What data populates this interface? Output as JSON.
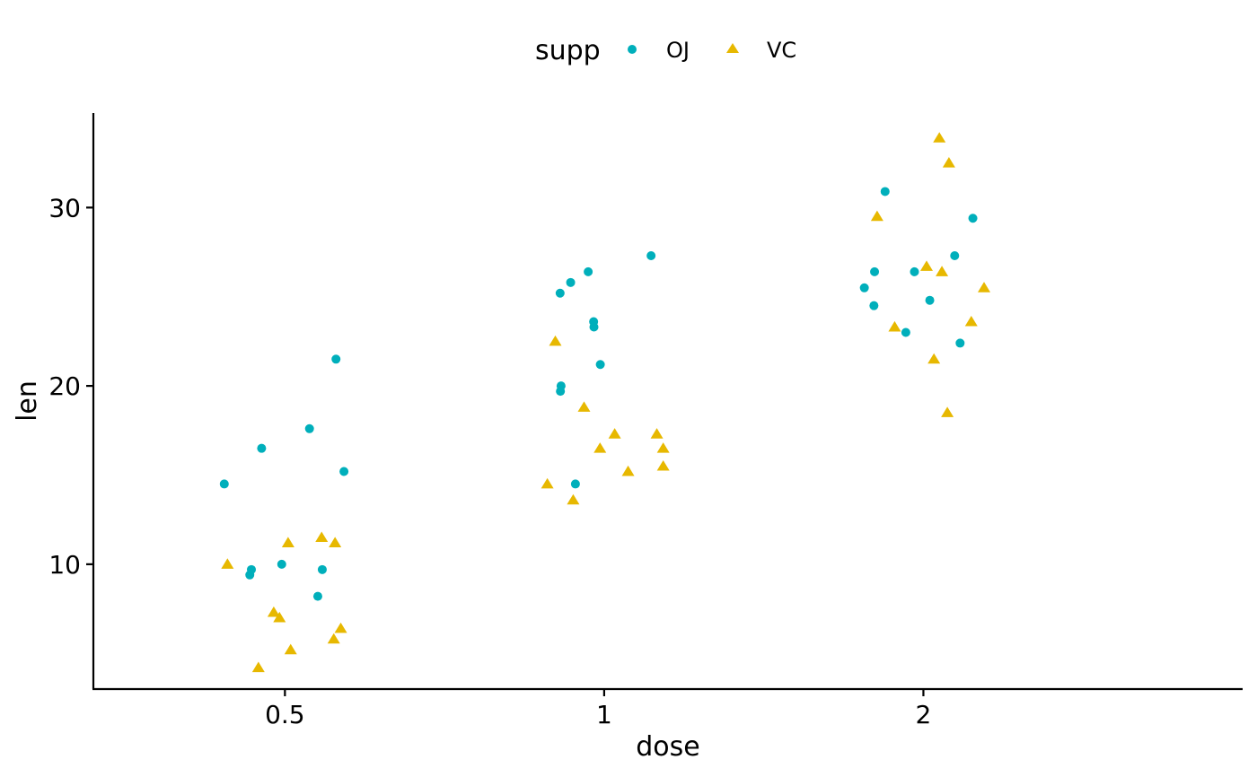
{
  "chart_data": {
    "type": "scatter",
    "title": "",
    "xlabel": "dose",
    "ylabel": "len",
    "x_type": "categorical",
    "categories": [
      "0.5",
      "1",
      "2"
    ],
    "ylim": [
      3.0,
      35.3
    ],
    "yticks": [
      10,
      20,
      30
    ],
    "grid": false,
    "legend": {
      "title": "supp",
      "position": "top"
    },
    "series": [
      {
        "name": "OJ",
        "color": "#00AFBB",
        "marker": "circle",
        "points": [
          {
            "x": "0.5",
            "jitter": -0.19,
            "y": 14.5
          },
          {
            "x": "0.5",
            "jitter": -0.11,
            "y": 9.4
          },
          {
            "x": "0.5",
            "jitter": -0.105,
            "y": 9.7
          },
          {
            "x": "0.5",
            "jitter": -0.073,
            "y": 16.5
          },
          {
            "x": "0.5",
            "jitter": -0.01,
            "y": 10.0
          },
          {
            "x": "0.5",
            "jitter": 0.077,
            "y": 17.6
          },
          {
            "x": "0.5",
            "jitter": 0.103,
            "y": 8.2
          },
          {
            "x": "0.5",
            "jitter": 0.117,
            "y": 9.7
          },
          {
            "x": "0.5",
            "jitter": 0.16,
            "y": 21.5
          },
          {
            "x": "0.5",
            "jitter": 0.185,
            "y": 15.2
          },
          {
            "x": "1",
            "jitter": -0.138,
            "y": 25.2
          },
          {
            "x": "1",
            "jitter": -0.137,
            "y": 19.7
          },
          {
            "x": "1",
            "jitter": -0.135,
            "y": 20.0
          },
          {
            "x": "1",
            "jitter": -0.105,
            "y": 25.8
          },
          {
            "x": "1",
            "jitter": -0.09,
            "y": 14.5
          },
          {
            "x": "1",
            "jitter": -0.05,
            "y": 26.4
          },
          {
            "x": "1",
            "jitter": -0.033,
            "y": 23.6
          },
          {
            "x": "1",
            "jitter": -0.032,
            "y": 23.3
          },
          {
            "x": "1",
            "jitter": -0.012,
            "y": 21.2
          },
          {
            "x": "1",
            "jitter": 0.147,
            "y": 27.3
          },
          {
            "x": "2",
            "jitter": -0.185,
            "y": 25.5
          },
          {
            "x": "2",
            "jitter": -0.155,
            "y": 24.5
          },
          {
            "x": "2",
            "jitter": -0.153,
            "y": 26.4
          },
          {
            "x": "2",
            "jitter": -0.12,
            "y": 30.9
          },
          {
            "x": "2",
            "jitter": -0.055,
            "y": 23.0
          },
          {
            "x": "2",
            "jitter": -0.028,
            "y": 26.4
          },
          {
            "x": "2",
            "jitter": 0.02,
            "y": 24.8
          },
          {
            "x": "2",
            "jitter": 0.098,
            "y": 27.3
          },
          {
            "x": "2",
            "jitter": 0.115,
            "y": 22.4
          },
          {
            "x": "2",
            "jitter": 0.155,
            "y": 29.4
          }
        ]
      },
      {
        "name": "VC",
        "color": "#E7B800",
        "marker": "triangle",
        "points": [
          {
            "x": "0.5",
            "jitter": -0.18,
            "y": 10.0
          },
          {
            "x": "0.5",
            "jitter": -0.083,
            "y": 4.2
          },
          {
            "x": "0.5",
            "jitter": -0.035,
            "y": 7.3
          },
          {
            "x": "0.5",
            "jitter": -0.017,
            "y": 7.0
          },
          {
            "x": "0.5",
            "jitter": 0.01,
            "y": 11.2
          },
          {
            "x": "0.5",
            "jitter": 0.018,
            "y": 5.2
          },
          {
            "x": "0.5",
            "jitter": 0.115,
            "y": 11.5
          },
          {
            "x": "0.5",
            "jitter": 0.153,
            "y": 5.8
          },
          {
            "x": "0.5",
            "jitter": 0.157,
            "y": 11.2
          },
          {
            "x": "0.5",
            "jitter": 0.175,
            "y": 6.4
          },
          {
            "x": "1",
            "jitter": -0.178,
            "y": 14.5
          },
          {
            "x": "1",
            "jitter": -0.153,
            "y": 22.5
          },
          {
            "x": "1",
            "jitter": -0.097,
            "y": 13.6
          },
          {
            "x": "1",
            "jitter": -0.063,
            "y": 18.8
          },
          {
            "x": "1",
            "jitter": -0.013,
            "y": 16.5
          },
          {
            "x": "1",
            "jitter": 0.033,
            "y": 17.3
          },
          {
            "x": "1",
            "jitter": 0.075,
            "y": 15.2
          },
          {
            "x": "1",
            "jitter": 0.165,
            "y": 17.3
          },
          {
            "x": "1",
            "jitter": 0.185,
            "y": 16.5
          },
          {
            "x": "1",
            "jitter": 0.185,
            "y": 15.5
          },
          {
            "x": "2",
            "jitter": -0.145,
            "y": 29.5
          },
          {
            "x": "2",
            "jitter": -0.09,
            "y": 23.3
          },
          {
            "x": "2",
            "jitter": 0.01,
            "y": 26.7
          },
          {
            "x": "2",
            "jitter": 0.033,
            "y": 21.5
          },
          {
            "x": "2",
            "jitter": 0.05,
            "y": 33.9
          },
          {
            "x": "2",
            "jitter": 0.058,
            "y": 26.4
          },
          {
            "x": "2",
            "jitter": 0.075,
            "y": 18.5
          },
          {
            "x": "2",
            "jitter": 0.08,
            "y": 32.5
          },
          {
            "x": "2",
            "jitter": 0.15,
            "y": 23.6
          },
          {
            "x": "2",
            "jitter": 0.19,
            "y": 25.5
          }
        ]
      }
    ]
  }
}
